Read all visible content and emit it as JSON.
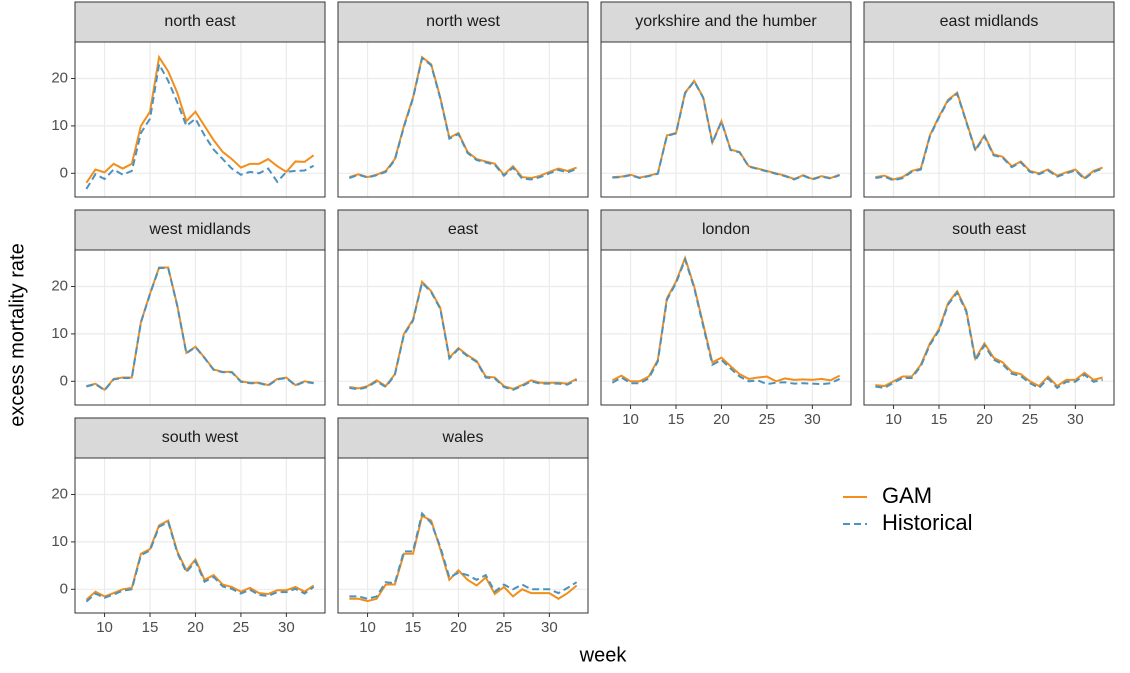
{
  "chart_data": {
    "type": "line",
    "x_label": "week",
    "y_label": "excess mortality rate",
    "x": [
      8,
      9,
      10,
      11,
      12,
      13,
      14,
      15,
      16,
      17,
      18,
      19,
      20,
      21,
      22,
      23,
      24,
      25,
      26,
      27,
      28,
      29,
      30,
      31,
      32,
      33
    ],
    "xlim": [
      6.75,
      34.25
    ],
    "xticks": [
      10,
      15,
      20,
      25,
      30
    ],
    "ylim": [
      -5,
      27.7
    ],
    "yticks": [
      0,
      10,
      20
    ],
    "grid": true,
    "legend": "right",
    "facets": [
      {
        "title": "north east",
        "series": [
          {
            "name": "GAM",
            "color": "#f28e1c",
            "style": "solid",
            "values": [
              -2,
              0.8,
              0.2,
              2,
              1,
              2,
              10,
              13,
              24.5,
              21.5,
              17,
              11,
              13,
              10,
              7,
              4.5,
              3,
              1.2,
              2,
              2,
              3,
              1.5,
              0.3,
              2.5,
              2.4,
              3.8
            ]
          },
          {
            "name": "Historical",
            "color": "#4a93c0",
            "style": "dashed",
            "values": [
              -3.3,
              -0.2,
              -1.2,
              0.8,
              -0.3,
              0.5,
              8.5,
              11.5,
              23,
              19.5,
              15,
              10,
              11.5,
              8,
              5,
              3,
              1,
              -0.3,
              0.3,
              0,
              1,
              -1.8,
              0.3,
              0.5,
              0.6,
              1.6
            ]
          }
        ]
      },
      {
        "title": "north west",
        "series": [
          {
            "name": "GAM",
            "color": "#f28e1c",
            "style": "solid",
            "values": [
              -0.8,
              -0.2,
              -0.8,
              -0.3,
              0.5,
              3,
              10,
              16,
              24.5,
              23,
              16,
              7.5,
              8.5,
              4.5,
              3,
              2.5,
              2,
              -0.3,
              1.5,
              -0.8,
              -1,
              -0.5,
              0.3,
              1,
              0.5,
              1.2
            ]
          },
          {
            "name": "Historical",
            "color": "#4a93c0",
            "style": "dashed",
            "values": [
              -1,
              -0.3,
              -0.9,
              -0.4,
              0.3,
              2.8,
              9.8,
              15.8,
              24.3,
              22.8,
              15.8,
              7.3,
              8.3,
              4.3,
              2.8,
              2.3,
              1.8,
              -0.5,
              1.2,
              -1.1,
              -1.3,
              -0.8,
              0,
              0.7,
              0.2,
              0.9
            ]
          }
        ]
      },
      {
        "title": "yorkshire and the humber",
        "series": [
          {
            "name": "GAM",
            "color": "#f28e1c",
            "style": "solid",
            "values": [
              -0.8,
              -0.7,
              -0.3,
              -0.9,
              -0.5,
              0,
              8,
              8.5,
              17,
              19.5,
              16,
              6.5,
              11,
              5,
              4.5,
              1.5,
              1,
              0.5,
              0,
              -0.5,
              -1.2,
              -0.4,
              -1.2,
              -0.6,
              -1,
              -0.3
            ]
          },
          {
            "name": "Historical",
            "color": "#4a93c0",
            "style": "dashed",
            "values": [
              -0.9,
              -0.8,
              -0.4,
              -1,
              -0.6,
              -0.1,
              7.9,
              8.4,
              16.9,
              19.4,
              15.9,
              6.4,
              10.9,
              4.9,
              4.4,
              1.4,
              0.9,
              0.4,
              -0.1,
              -0.6,
              -1.3,
              -0.5,
              -1.3,
              -0.7,
              -1.1,
              -0.4
            ]
          }
        ]
      },
      {
        "title": "east midlands",
        "series": [
          {
            "name": "GAM",
            "color": "#f28e1c",
            "style": "solid",
            "values": [
              -0.8,
              -0.5,
              -1.3,
              -0.8,
              0.5,
              1,
              8,
              12,
              15.5,
              17,
              11,
              5,
              8,
              4,
              3.5,
              1.5,
              2.5,
              0.5,
              0,
              0.8,
              -0.5,
              0.2,
              0.8,
              -1,
              0.5,
              1.2
            ]
          },
          {
            "name": "Historical",
            "color": "#4a93c0",
            "style": "dashed",
            "values": [
              -1,
              -0.7,
              -1.5,
              -1,
              0.3,
              0.8,
              7.8,
              11.8,
              15.3,
              16.8,
              10.8,
              4.8,
              7.8,
              3.8,
              3.3,
              1.3,
              2.3,
              0.3,
              -0.2,
              0.6,
              -0.7,
              0,
              0.6,
              -1.2,
              0.3,
              1
            ]
          }
        ]
      },
      {
        "title": "west midlands",
        "series": [
          {
            "name": "GAM",
            "color": "#f28e1c",
            "style": "solid",
            "values": [
              -1,
              -0.5,
              -1.8,
              0.5,
              0.8,
              0.8,
              12.5,
              18.5,
              24,
              24,
              16,
              6,
              7.3,
              5,
              2.5,
              2,
              2,
              0,
              -0.3,
              -0.3,
              -0.8,
              0.5,
              0.8,
              -0.8,
              0,
              -0.3
            ]
          },
          {
            "name": "Historical",
            "color": "#4a93c0",
            "style": "dashed",
            "values": [
              -1.1,
              -0.6,
              -1.9,
              0.4,
              0.7,
              0.7,
              12.4,
              18.4,
              23.9,
              23.9,
              15.9,
              5.9,
              7.2,
              4.9,
              2.4,
              1.9,
              1.9,
              -0.1,
              -0.4,
              -0.4,
              -0.9,
              0.4,
              0.7,
              -0.9,
              -0.1,
              -0.4
            ]
          }
        ]
      },
      {
        "title": "east",
        "series": [
          {
            "name": "GAM",
            "color": "#f28e1c",
            "style": "solid",
            "values": [
              -1.2,
              -1.5,
              -1,
              0.2,
              -1,
              1.5,
              10,
              13,
              21,
              19,
              15.5,
              5,
              7,
              5.5,
              4.3,
              1,
              0.8,
              -1,
              -1.6,
              -0.8,
              0.2,
              -0.3,
              -0.3,
              -0.3,
              -0.5,
              0.5
            ]
          },
          {
            "name": "Historical",
            "color": "#4a93c0",
            "style": "dashed",
            "values": [
              -1.4,
              -1.7,
              -1.2,
              0,
              -1.2,
              1.3,
              9.8,
              12.8,
              20.8,
              18.8,
              15.3,
              4.8,
              6.8,
              5.3,
              4.1,
              0.8,
              0.6,
              -1.2,
              -1.8,
              -1,
              0,
              -0.5,
              -0.5,
              -0.5,
              -0.7,
              0.3
            ]
          }
        ]
      },
      {
        "title": "london",
        "series": [
          {
            "name": "GAM",
            "color": "#f28e1c",
            "style": "solid",
            "values": [
              0.2,
              1.2,
              0,
              0,
              1,
              4.5,
              17.5,
              21,
              26,
              20,
              12,
              4,
              5,
              3.2,
              1.5,
              0.5,
              0.8,
              1,
              0,
              0.6,
              0.3,
              0.4,
              0.3,
              0.5,
              0.2,
              1.2
            ]
          },
          {
            "name": "Historical",
            "color": "#4a93c0",
            "style": "dashed",
            "values": [
              -0.3,
              0.8,
              -0.4,
              -0.4,
              0.6,
              4.2,
              17.2,
              20.7,
              25.7,
              19.7,
              11.6,
              3.5,
              4.5,
              2.7,
              1,
              0,
              0.2,
              -0.6,
              -0.3,
              -0.2,
              -0.5,
              -0.4,
              -0.5,
              -0.6,
              -0.4,
              0.5
            ]
          }
        ]
      },
      {
        "title": "south east",
        "series": [
          {
            "name": "GAM",
            "color": "#f28e1c",
            "style": "solid",
            "values": [
              -0.8,
              -1,
              0,
              1,
              1,
              3.5,
              8,
              11,
              16.5,
              19,
              15,
              4.8,
              8,
              5,
              4,
              2,
              1.5,
              0,
              -1,
              1,
              -1,
              0.3,
              0.3,
              1.8,
              0.3,
              0.8
            ]
          },
          {
            "name": "Historical",
            "color": "#4a93c0",
            "style": "dashed",
            "values": [
              -1.1,
              -1.4,
              -0.3,
              0.7,
              0.7,
              3.2,
              7.7,
              10.7,
              16.2,
              18.7,
              14.7,
              4.4,
              7.6,
              4.6,
              3.6,
              1.6,
              1.1,
              -0.4,
              -1.4,
              0.6,
              -1.4,
              -0.1,
              -0.1,
              1.4,
              -0.1,
              0.3
            ]
          }
        ]
      },
      {
        "title": "south west",
        "series": [
          {
            "name": "GAM",
            "color": "#f28e1c",
            "style": "solid",
            "values": [
              -2.2,
              -0.5,
              -1.5,
              -0.8,
              0,
              0.3,
              7.5,
              8.5,
              13.5,
              14.5,
              8,
              4,
              6.3,
              2,
              3,
              1,
              0.5,
              -0.5,
              0.3,
              -0.8,
              -1,
              -0.2,
              -0.2,
              0.5,
              -0.5,
              0.8
            ]
          },
          {
            "name": "Historical",
            "color": "#4a93c0",
            "style": "dashed",
            "values": [
              -2.6,
              -0.9,
              -1.8,
              -1.1,
              -0.3,
              0,
              7.2,
              8.2,
              13.2,
              14.2,
              7.7,
              3.6,
              5.9,
              1.6,
              2.6,
              0.6,
              0.1,
              -0.9,
              -0.1,
              -1.2,
              -1.4,
              -0.6,
              -0.6,
              0.1,
              -0.9,
              0.5
            ]
          }
        ]
      },
      {
        "title": "wales",
        "series": [
          {
            "name": "GAM",
            "color": "#f28e1c",
            "style": "solid",
            "values": [
              -2,
              -2,
              -2.5,
              -2,
              1,
              1,
              7.5,
              7.5,
              15.5,
              14.5,
              8.5,
              2,
              4,
              2,
              0.8,
              2.5,
              -1,
              0.5,
              -1.5,
              0,
              -0.8,
              -0.8,
              -0.8,
              -2,
              -0.8,
              0.8
            ]
          },
          {
            "name": "Historical",
            "color": "#4a93c0",
            "style": "dashed",
            "values": [
              -1.5,
              -1.5,
              -2,
              -1.5,
              1.5,
              1.3,
              8,
              8,
              16,
              14,
              9,
              2.5,
              3.5,
              3,
              2,
              3,
              -0.5,
              1,
              0,
              1,
              0,
              0,
              0,
              -0.8,
              0.3,
              1.5
            ]
          }
        ]
      }
    ]
  }
}
